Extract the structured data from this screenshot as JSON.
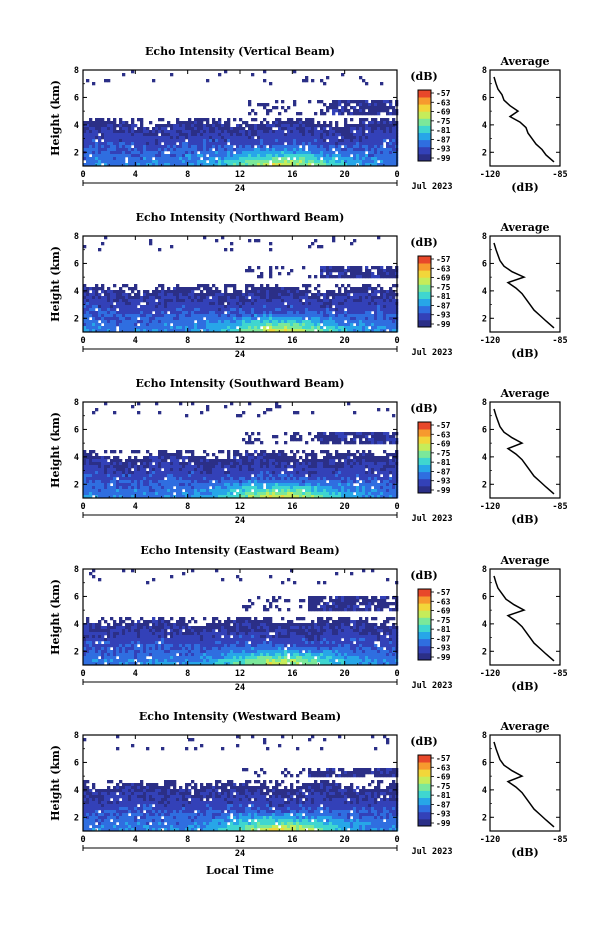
{
  "figure": {
    "xlabel": "Local Time",
    "date_label": "Jul 2023",
    "day_label": "24",
    "colorbar_unit": "(dB)",
    "avg_title": "Average",
    "avg_xlabel": "(dB)"
  },
  "colorbar": {
    "ticks": [
      "-57",
      "-63",
      "-69",
      "-75",
      "-81",
      "-87",
      "-93",
      "-99"
    ],
    "colors": [
      "#2b2f87",
      "#3341b8",
      "#2f6ee0",
      "#27a6e8",
      "#3fd6d0",
      "#7be89a",
      "#c6ec5a",
      "#f2d63a",
      "#f79a2e",
      "#e8482a"
    ]
  },
  "chart_data": [
    {
      "type": "heatmap",
      "title": "Echo Intensity (Vertical Beam)",
      "ylabel": "Height (km)",
      "xlim": [
        0,
        24
      ],
      "ylim": [
        1,
        8
      ],
      "x_ticks": [
        "0",
        "4",
        "8",
        "12",
        "16",
        "20",
        "0"
      ],
      "y_ticks": [
        "2",
        "4",
        "6",
        "8"
      ],
      "cloud_top_km": 4.3,
      "upper_band_km": [
        4.9,
        5.9
      ],
      "upper_band_start_h": 19,
      "average_profile": {
        "xlim": [
          -120,
          -85
        ],
        "ylim": [
          1,
          8
        ],
        "x_ticks": [
          "-120",
          "-85"
        ],
        "y_ticks": [
          "2",
          "4",
          "6",
          "8"
        ],
        "height": [
          1.3,
          1.8,
          2.2,
          2.6,
          3.0,
          3.4,
          3.8,
          4.2,
          4.6,
          5.0,
          5.4,
          5.8,
          6.2,
          6.6,
          7.0,
          7.5
        ],
        "db": [
          -88,
          -92,
          -94,
          -97,
          -99,
          -101,
          -102,
          -105,
          -110,
          -106,
          -110,
          -113,
          -114,
          -116,
          -117,
          -118
        ]
      }
    },
    {
      "type": "heatmap",
      "title": "Echo Intensity (Northward Beam)",
      "ylabel": "Height (km)",
      "xlim": [
        0,
        24
      ],
      "ylim": [
        1,
        8
      ],
      "x_ticks": [
        "0",
        "4",
        "8",
        "12",
        "16",
        "20",
        "0"
      ],
      "y_ticks": [
        "2",
        "4",
        "6",
        "8"
      ],
      "cloud_top_km": 4.2,
      "upper_band_km": [
        5.0,
        6.0
      ],
      "upper_band_start_h": 18,
      "average_profile": {
        "xlim": [
          -120,
          -85
        ],
        "ylim": [
          1,
          8
        ],
        "x_ticks": [
          "-120",
          "-85"
        ],
        "y_ticks": [
          "2",
          "4",
          "6",
          "8"
        ],
        "height": [
          1.3,
          1.8,
          2.2,
          2.6,
          3.0,
          3.4,
          3.8,
          4.2,
          4.6,
          5.0,
          5.4,
          5.8,
          6.2,
          6.6,
          7.0,
          7.5
        ],
        "db": [
          -88,
          -92,
          -95,
          -98,
          -100,
          -102,
          -104,
          -107,
          -111,
          -103,
          -109,
          -113,
          -115,
          -116,
          -117,
          -118
        ]
      }
    },
    {
      "type": "heatmap",
      "title": "Echo Intensity (Southward Beam)",
      "ylabel": "Height (km)",
      "xlim": [
        0,
        24
      ],
      "ylim": [
        1,
        8
      ],
      "x_ticks": [
        "0",
        "4",
        "8",
        "12",
        "16",
        "20",
        "0"
      ],
      "y_ticks": [
        "2",
        "4",
        "6",
        "8"
      ],
      "cloud_top_km": 4.2,
      "upper_band_km": [
        5.0,
        6.0
      ],
      "upper_band_start_h": 18,
      "average_profile": {
        "xlim": [
          -120,
          -85
        ],
        "ylim": [
          1,
          8
        ],
        "x_ticks": [
          "-120",
          "-85"
        ],
        "y_ticks": [
          "2",
          "4",
          "6",
          "8"
        ],
        "height": [
          1.3,
          1.8,
          2.2,
          2.6,
          3.0,
          3.4,
          3.8,
          4.2,
          4.6,
          5.0,
          5.4,
          5.8,
          6.2,
          6.6,
          7.0,
          7.5
        ],
        "db": [
          -88,
          -92,
          -95,
          -98,
          -100,
          -102,
          -104,
          -107,
          -111,
          -104,
          -109,
          -113,
          -115,
          -116,
          -117,
          -118
        ]
      }
    },
    {
      "type": "heatmap",
      "title": "Echo Intensity (Eastward Beam)",
      "ylabel": "Height (km)",
      "xlim": [
        0,
        24
      ],
      "ylim": [
        1,
        8
      ],
      "x_ticks": [
        "0",
        "4",
        "8",
        "12",
        "16",
        "20",
        "0"
      ],
      "y_ticks": [
        "2",
        "4",
        "6",
        "8"
      ],
      "cloud_top_km": 4.3,
      "upper_band_km": [
        5.0,
        6.2
      ],
      "upper_band_start_h": 17,
      "average_profile": {
        "xlim": [
          -120,
          -85
        ],
        "ylim": [
          1,
          8
        ],
        "x_ticks": [
          "-120",
          "-85"
        ],
        "y_ticks": [
          "2",
          "4",
          "6",
          "8"
        ],
        "height": [
          1.3,
          1.8,
          2.2,
          2.6,
          3.0,
          3.4,
          3.8,
          4.2,
          4.6,
          5.0,
          5.4,
          5.8,
          6.2,
          6.6,
          7.0,
          7.5
        ],
        "db": [
          -88,
          -92,
          -95,
          -98,
          -100,
          -102,
          -104,
          -107,
          -111,
          -103,
          -108,
          -112,
          -114,
          -116,
          -117,
          -118
        ]
      }
    },
    {
      "type": "heatmap",
      "title": "Echo Intensity (Westward Beam)",
      "ylabel": "Height (km)",
      "xlim": [
        0,
        24
      ],
      "ylim": [
        1,
        8
      ],
      "x_ticks": [
        "0",
        "4",
        "8",
        "12",
        "16",
        "20",
        "0"
      ],
      "y_ticks": [
        "2",
        "4",
        "6",
        "8"
      ],
      "cloud_top_km": 4.4,
      "upper_band_km": [
        5.0,
        5.8
      ],
      "upper_band_start_h": 17,
      "average_profile": {
        "xlim": [
          -120,
          -85
        ],
        "ylim": [
          1,
          8
        ],
        "x_ticks": [
          "-120",
          "-85"
        ],
        "y_ticks": [
          "2",
          "4",
          "6",
          "8"
        ],
        "height": [
          1.3,
          1.8,
          2.2,
          2.6,
          3.0,
          3.4,
          3.8,
          4.2,
          4.6,
          5.0,
          5.4,
          5.8,
          6.2,
          6.6,
          7.0,
          7.5
        ],
        "db": [
          -88,
          -92,
          -95,
          -98,
          -100,
          -102,
          -104,
          -107,
          -111,
          -104,
          -109,
          -113,
          -115,
          -116,
          -117,
          -118
        ]
      }
    }
  ]
}
